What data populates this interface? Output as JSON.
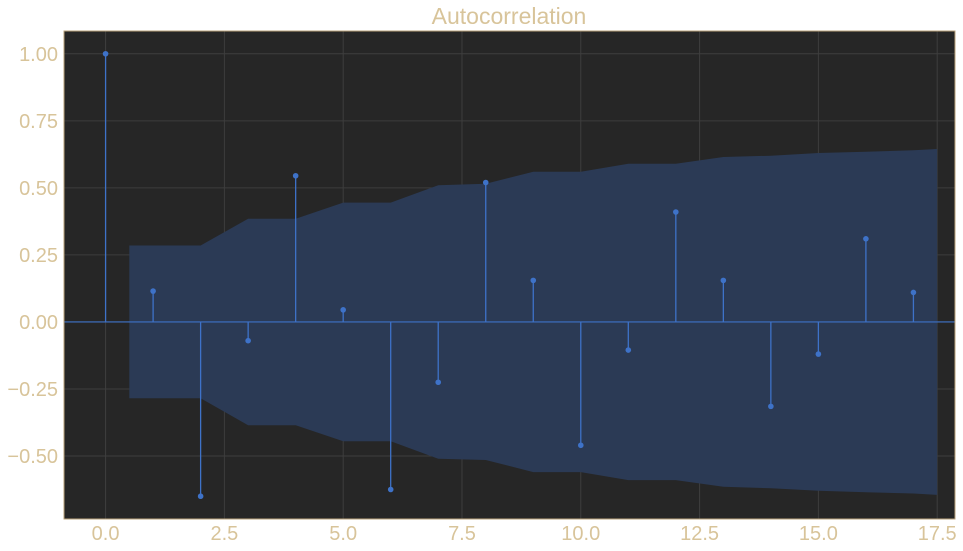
{
  "chart_data": {
    "type": "stem",
    "title": "Autocorrelation",
    "xlabel": "",
    "ylabel": "",
    "x": [
      0,
      1,
      2,
      3,
      4,
      5,
      6,
      7,
      8,
      9,
      10,
      11,
      12,
      13,
      14,
      15,
      16,
      17
    ],
    "values": [
      1.0,
      0.115,
      -0.65,
      -0.07,
      0.545,
      0.045,
      -0.625,
      -0.225,
      0.52,
      0.155,
      -0.46,
      -0.105,
      0.41,
      0.155,
      -0.315,
      -0.12,
      0.31,
      0.11
    ],
    "confidence_band": {
      "x": [
        0.5,
        1,
        2,
        3,
        4,
        5,
        6,
        7,
        8,
        9,
        10,
        11,
        12,
        13,
        14,
        15,
        16,
        17,
        17.5
      ],
      "upper": [
        0.285,
        0.285,
        0.285,
        0.385,
        0.385,
        0.445,
        0.445,
        0.51,
        0.515,
        0.56,
        0.56,
        0.59,
        0.59,
        0.615,
        0.62,
        0.63,
        0.635,
        0.64,
        0.645
      ],
      "lower": [
        -0.285,
        -0.285,
        -0.285,
        -0.385,
        -0.385,
        -0.445,
        -0.445,
        -0.51,
        -0.515,
        -0.56,
        -0.56,
        -0.59,
        -0.59,
        -0.615,
        -0.62,
        -0.63,
        -0.635,
        -0.64,
        -0.645
      ]
    },
    "xlim": [
      -0.875,
      17.875
    ],
    "ylim": [
      -0.735,
      1.085
    ],
    "xticks": [
      "0.0",
      "2.5",
      "5.0",
      "7.5",
      "10.0",
      "12.5",
      "15.0",
      "17.5"
    ],
    "yticks": [
      "1.00",
      "0.75",
      "0.50",
      "0.25",
      "0.00",
      "−0.25",
      "−0.50"
    ],
    "grid": true,
    "colors": {
      "background": "#262626",
      "stem": "#3e72c8",
      "band": "#2b3a55",
      "text": "#d8c49a",
      "frame": "#b9a27a",
      "grid": "#3e3e3e",
      "page": "#ffffff"
    }
  }
}
